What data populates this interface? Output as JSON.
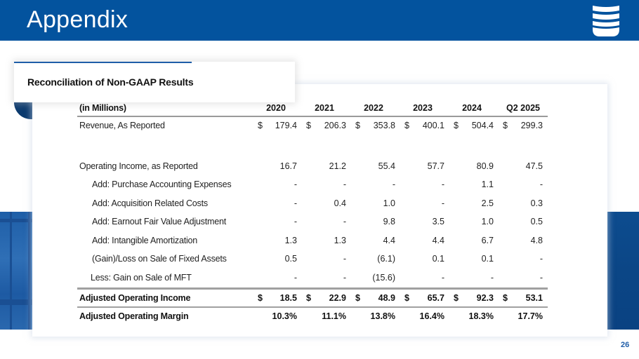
{
  "header": {
    "title": "Appendix",
    "logo_icon": "shield-stripes-logo"
  },
  "section": {
    "subtitle": "Reconciliation of Non-GAAP Results"
  },
  "table": {
    "unit_label": "(in Millions)",
    "columns": [
      "2020",
      "2021",
      "2022",
      "2023",
      "2024",
      "Q2 2025"
    ],
    "currency_symbol": "$",
    "rows": [
      {
        "label": "Revenue, As Reported",
        "values": [
          "179.4",
          "206.3",
          "353.8",
          "400.1",
          "504.4",
          "299.3"
        ],
        "dollar": true,
        "bold": false
      },
      {
        "label": "Operating Income, as Reported",
        "values": [
          "16.7",
          "21.2",
          "55.4",
          "57.7",
          "80.9",
          "47.5"
        ],
        "dollar": false,
        "bold": false
      },
      {
        "label": "Add: Purchase Accounting Expenses",
        "values": [
          "-",
          "-",
          "-",
          "-",
          "1.1",
          "-"
        ],
        "dollar": false,
        "bold": false
      },
      {
        "label": "Add: Acquisition Related Costs",
        "values": [
          "-",
          "0.4",
          "1.0",
          "-",
          "2.5",
          "0.3"
        ],
        "dollar": false,
        "bold": false
      },
      {
        "label": "Add: Earnout Fair Value Adjustment",
        "values": [
          "-",
          "-",
          "9.8",
          "3.5",
          "1.0",
          "0.5"
        ],
        "dollar": false,
        "bold": false
      },
      {
        "label": "Add: Intangible Amortization",
        "values": [
          "1.3",
          "1.3",
          "4.4",
          "4.4",
          "6.7",
          "4.8"
        ],
        "dollar": false,
        "bold": false
      },
      {
        "label": "(Gain)/Loss on Sale of Fixed Assets",
        "values": [
          "0.5",
          "-",
          "(6.1)",
          "0.1",
          "0.1",
          "-"
        ],
        "dollar": false,
        "bold": false
      },
      {
        "label": "Less: Gain on Sale of MFT",
        "values": [
          "-",
          "-",
          "(15.6)",
          "-",
          "-",
          "-"
        ],
        "dollar": false,
        "bold": false
      },
      {
        "label": "Adjusted Operating Income",
        "values": [
          "18.5",
          "22.9",
          "48.9",
          "65.7",
          "92.3",
          "53.1"
        ],
        "dollar": true,
        "bold": true
      },
      {
        "label": "Adjusted Operating Margin",
        "values": [
          "10.3%",
          "11.1%",
          "13.8%",
          "16.4%",
          "18.3%",
          "17.7%"
        ],
        "dollar": false,
        "bold": true
      }
    ]
  },
  "footer": {
    "page_number": "26"
  },
  "colors": {
    "brand_blue": "#03539e",
    "accent_navy": "#0b3a6e",
    "page_number": "#1f5ea8"
  }
}
